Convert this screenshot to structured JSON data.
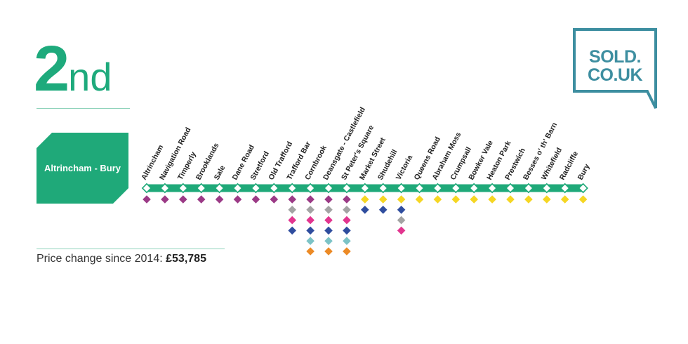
{
  "rank": {
    "number": "2",
    "suffix": "nd"
  },
  "line_name": "Altrincham - Bury",
  "price_change": {
    "label": "Price change since 2014:",
    "value": "£53,785"
  },
  "logo": {
    "line1": "SOLD.",
    "line2": "CO.UK"
  },
  "colors": {
    "brand_green": "#1fa979",
    "logo_teal": "#3d8ea0",
    "purple": "#9b3a86",
    "grey": "#a3a3a3",
    "pink": "#e2358f",
    "blue": "#2f4d9e",
    "teal": "#7cc3c6",
    "orange": "#ec8a25",
    "yellow": "#f5d623"
  },
  "stations": [
    {
      "name": "Altrincham",
      "lines": [
        "purple"
      ]
    },
    {
      "name": "Navigation Road",
      "lines": [
        "purple"
      ]
    },
    {
      "name": "Timperly",
      "lines": [
        "purple"
      ]
    },
    {
      "name": "Brooklands",
      "lines": [
        "purple"
      ]
    },
    {
      "name": "Sale",
      "lines": [
        "purple"
      ]
    },
    {
      "name": "Dane Road",
      "lines": [
        "purple"
      ]
    },
    {
      "name": "Stretford",
      "lines": [
        "purple"
      ]
    },
    {
      "name": "Old Trafford",
      "lines": [
        "purple"
      ]
    },
    {
      "name": "Trafford Bar",
      "lines": [
        "purple",
        "grey",
        "pink",
        "blue"
      ]
    },
    {
      "name": "Cornbrook",
      "lines": [
        "purple",
        "grey",
        "pink",
        "blue",
        "teal",
        "orange"
      ]
    },
    {
      "name": "Deansgate - Castlefield",
      "lines": [
        "purple",
        "grey",
        "pink",
        "blue",
        "teal",
        "orange"
      ]
    },
    {
      "name": "St Peter's Square",
      "lines": [
        "purple",
        "grey",
        "pink",
        "blue",
        "teal",
        "orange"
      ]
    },
    {
      "name": "Market Street",
      "lines": [
        "yellow",
        "blue"
      ]
    },
    {
      "name": "Shudehill",
      "lines": [
        "yellow",
        "blue"
      ]
    },
    {
      "name": "Victoria",
      "lines": [
        "yellow",
        "blue",
        "grey",
        "pink"
      ]
    },
    {
      "name": "Queens Road",
      "lines": [
        "yellow"
      ]
    },
    {
      "name": "Abraham Moss",
      "lines": [
        "yellow"
      ]
    },
    {
      "name": "Crumpsall",
      "lines": [
        "yellow"
      ]
    },
    {
      "name": "Bowker Vale",
      "lines": [
        "yellow"
      ]
    },
    {
      "name": "Heaton Park",
      "lines": [
        "yellow"
      ]
    },
    {
      "name": "Prestwich",
      "lines": [
        "yellow"
      ]
    },
    {
      "name": "Besses o' th' Barn",
      "lines": [
        "yellow"
      ]
    },
    {
      "name": "Whitefield",
      "lines": [
        "yellow"
      ]
    },
    {
      "name": "Radcliffe",
      "lines": [
        "yellow"
      ]
    },
    {
      "name": "Bury",
      "lines": [
        "yellow"
      ]
    }
  ]
}
